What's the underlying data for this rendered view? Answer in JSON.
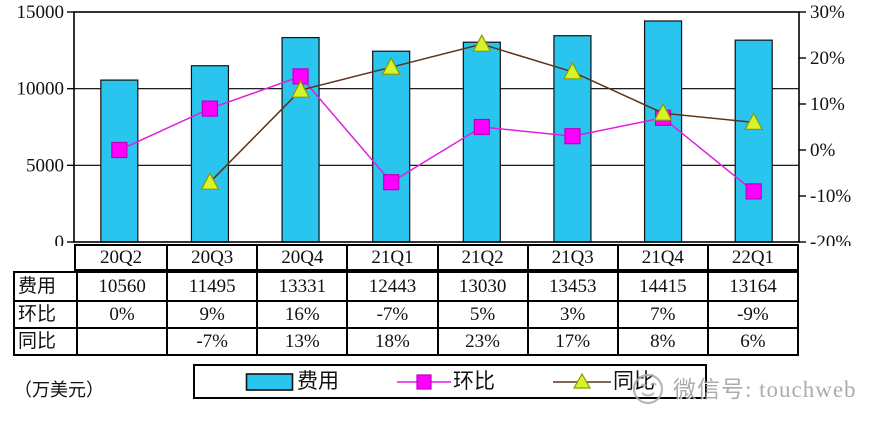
{
  "chart_data": {
    "type": "combo-bar-line",
    "categories": [
      "20Q2",
      "20Q3",
      "20Q4",
      "21Q1",
      "21Q2",
      "21Q3",
      "21Q4",
      "22Q1"
    ],
    "series": [
      {
        "name": "费用",
        "type": "bar",
        "axis": "left",
        "values": [
          10560,
          11495,
          13331,
          12443,
          13030,
          13453,
          14415,
          13164
        ],
        "color": "#29C5EF",
        "border_color": "#111111"
      },
      {
        "name": "环比",
        "type": "line",
        "axis": "right",
        "marker": "square",
        "values": [
          0,
          9,
          16,
          -7,
          5,
          3,
          7,
          -9
        ],
        "line_color": "#E020E0",
        "marker_color": "#FF00FF",
        "marker_border": "#BB00BB"
      },
      {
        "name": "同比",
        "type": "line",
        "axis": "right",
        "marker": "triangle",
        "values": [
          null,
          -7,
          13,
          18,
          23,
          17,
          8,
          6
        ],
        "line_color": "#5E3118",
        "marker_color": "#D7F32E",
        "marker_border": "#8A9A00"
      }
    ],
    "left_axis": {
      "min": 0,
      "max": 15000,
      "ticks": [
        {
          "value": 0,
          "label": "0"
        },
        {
          "value": 5000,
          "label": "5000"
        },
        {
          "value": 10000,
          "label": "10000"
        },
        {
          "value": 15000,
          "label": "15000"
        }
      ]
    },
    "right_axis": {
      "min": -20,
      "max": 30,
      "ticks": [
        {
          "value": -20,
          "label": "-20%"
        },
        {
          "value": -10,
          "label": "-10%"
        },
        {
          "value": 0,
          "label": "0%"
        },
        {
          "value": 10,
          "label": "10%"
        },
        {
          "value": 20,
          "label": "20%"
        },
        {
          "value": 30,
          "label": "30%"
        }
      ]
    },
    "grid": "horizontal",
    "legend_position": "bottom",
    "unit_label": "（万美元）"
  },
  "table": {
    "header": [
      "20Q2",
      "20Q3",
      "20Q4",
      "21Q1",
      "21Q2",
      "21Q3",
      "21Q4",
      "22Q1"
    ],
    "rows": [
      {
        "label": "费用",
        "values": [
          "10560",
          "11495",
          "13331",
          "12443",
          "13030",
          "13453",
          "14415",
          "13164"
        ]
      },
      {
        "label": "环比",
        "values": [
          "0%",
          "9%",
          "16%",
          "-7%",
          "5%",
          "3%",
          "7%",
          "-9%"
        ]
      },
      {
        "label": "同比",
        "values": [
          "",
          "-7%",
          "13%",
          "18%",
          "23%",
          "17%",
          "8%",
          "6%"
        ]
      }
    ]
  },
  "legend": {
    "items": [
      {
        "label": "费用",
        "swatch": "bar"
      },
      {
        "label": "环比",
        "swatch": "square-on-line"
      },
      {
        "label": "同比",
        "swatch": "triangle-on-line"
      }
    ]
  },
  "watermark": {
    "icon": "wechat-smiley-icon",
    "text": "微信号: touchweb"
  }
}
